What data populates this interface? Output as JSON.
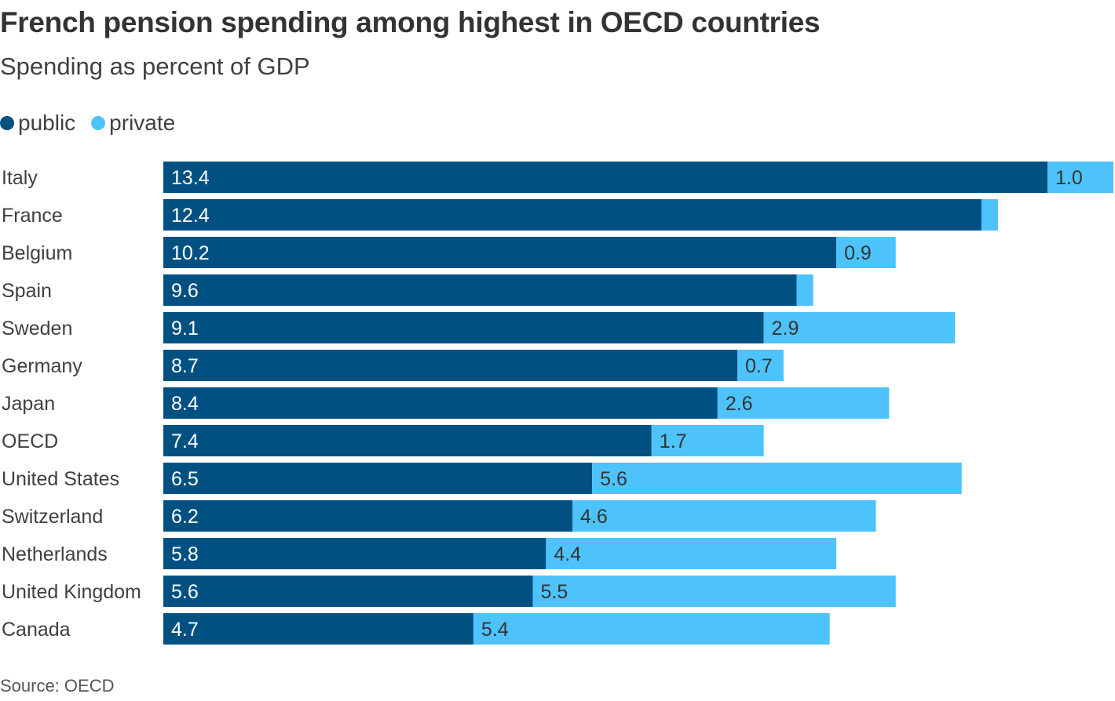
{
  "title": "French pension spending among highest in OECD countries",
  "subtitle": "Spending as percent of GDP",
  "source": "Source: OECD",
  "legend": {
    "public": "public",
    "private": "private"
  },
  "colors": {
    "public": "#005182",
    "private": "#4ec3fb",
    "public_text": "#ffffff",
    "private_text": "#333333",
    "category_text": "#404040"
  },
  "chart_data": {
    "type": "bar",
    "orientation": "horizontal",
    "stacked": true,
    "title": "French pension spending among highest in OECD countries",
    "subtitle": "Spending as percent of GDP",
    "xlabel": "",
    "ylabel": "",
    "xlim": [
      0,
      14.4
    ],
    "grid": false,
    "legend_position": "top-left",
    "categories": [
      "Italy",
      "France",
      "Belgium",
      "Spain",
      "Sweden",
      "Germany",
      "Japan",
      "OECD",
      "United States",
      "Switzerland",
      "Netherlands",
      "United Kingdom",
      "Canada"
    ],
    "series": [
      {
        "name": "public",
        "values": [
          13.4,
          12.4,
          10.2,
          9.6,
          9.1,
          8.7,
          8.4,
          7.4,
          6.5,
          6.2,
          5.8,
          5.6,
          4.7
        ],
        "labels": [
          "13.4",
          "12.4",
          "10.2",
          "9.6",
          "9.1",
          "8.7",
          "8.4",
          "7.4",
          "6.5",
          "6.2",
          "5.8",
          "5.6",
          "4.7"
        ]
      },
      {
        "name": "private",
        "values": [
          1.0,
          0.25,
          0.9,
          0.25,
          2.9,
          0.7,
          2.6,
          1.7,
          5.6,
          4.6,
          4.4,
          5.5,
          5.4
        ],
        "labels": [
          "1.0",
          "",
          "0.9",
          "",
          "2.9",
          "0.7",
          "2.6",
          "1.7",
          "5.6",
          "4.6",
          "4.4",
          "5.5",
          "5.4"
        ]
      }
    ]
  }
}
